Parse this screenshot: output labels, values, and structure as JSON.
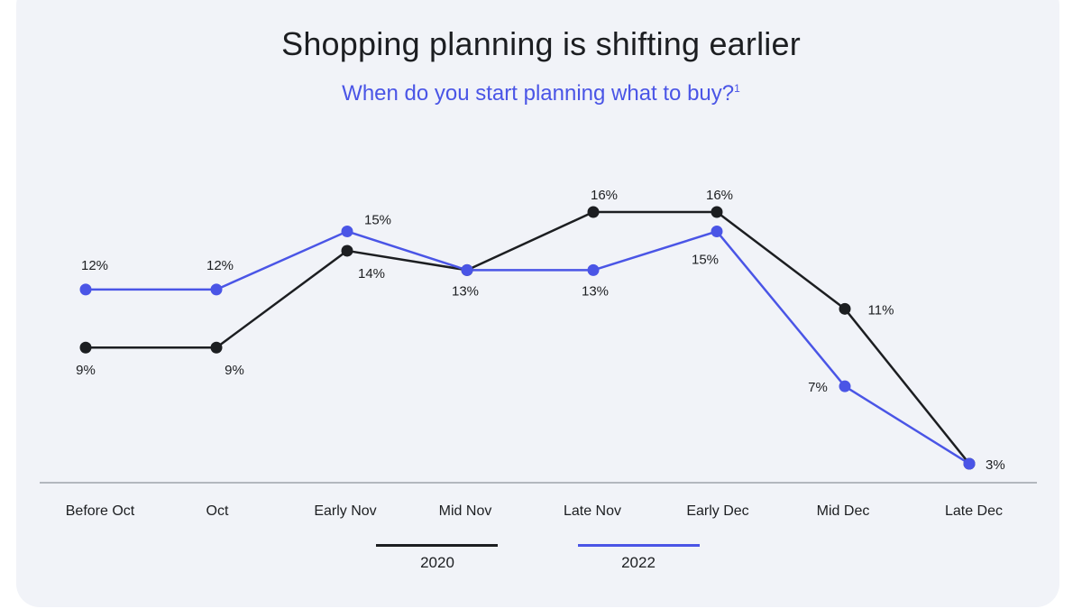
{
  "title": "Shopping planning is shifting earlier",
  "subtitle": "When do you start planning what to buy?",
  "subtitle_footnote": "1",
  "colors": {
    "series_2020": "#1c1e21",
    "series_2022": "#4a55e6",
    "axis": "#9ea3ab",
    "background": "#f1f3f8"
  },
  "chart_data": {
    "type": "line",
    "categories": [
      "Before Oct",
      "Oct",
      "Early Nov",
      "Mid Nov",
      "Late Nov",
      "Early Dec",
      "Mid Dec",
      "Late Dec"
    ],
    "series": [
      {
        "name": "2020",
        "values": [
          9,
          9,
          14,
          13,
          16,
          16,
          11,
          3
        ],
        "labels": [
          "9%",
          "9%",
          "14%",
          "13%",
          "16%",
          "16%",
          "11%",
          "3%"
        ]
      },
      {
        "name": "2022",
        "values": [
          12,
          12,
          15,
          13,
          13,
          15,
          7,
          3
        ],
        "labels": [
          "12%",
          "12%",
          "15%",
          "",
          "13%",
          "15%",
          "7%",
          ""
        ]
      }
    ],
    "unit": "%",
    "grid": false,
    "legend_position": "bottom"
  }
}
